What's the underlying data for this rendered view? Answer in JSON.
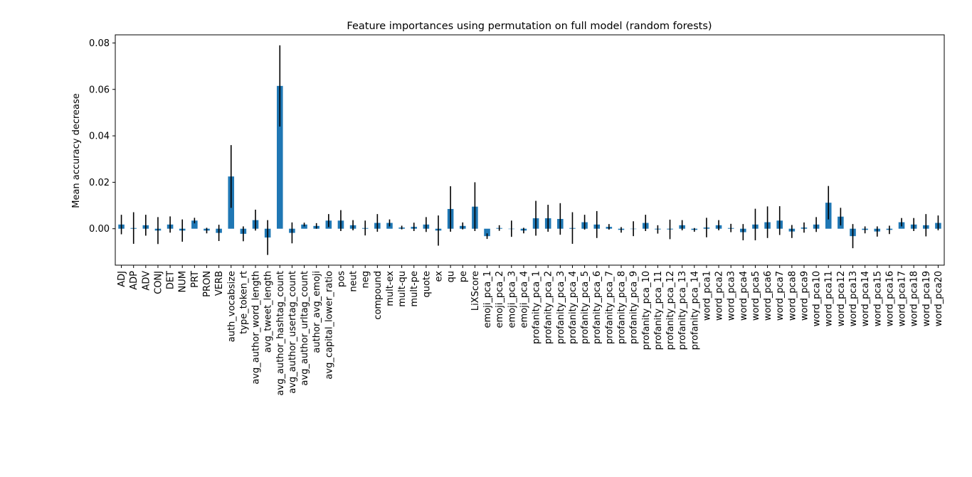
{
  "chart_data": {
    "type": "bar",
    "title": "Feature importances using permutation on full model (random forests)",
    "xlabel": "",
    "ylabel": "Mean accuracy decrease",
    "ylim": [
      -0.0157,
      0.0835
    ],
    "yticks": [
      0.0,
      0.02,
      0.04,
      0.06,
      0.08
    ],
    "ytick_labels": [
      "0.00",
      "0.02",
      "0.04",
      "0.06",
      "0.08"
    ],
    "bar_color": "#1f77b4",
    "error_bar_color": "#000000",
    "grid": false,
    "legend": "none",
    "categories": [
      "ADJ",
      "ADP",
      "ADV",
      "CONJ",
      "DET",
      "NUM",
      "PRT",
      "PRON",
      "VERB",
      "auth_vocabsize",
      "type_token_rt",
      "avg_author_word_length",
      "avg_tweet_length",
      "avg_author_hashtag_count",
      "avg_author_usertag_count",
      "avg_author_urltag_count",
      "author_avg_emoji",
      "avg_capital_lower_ratio",
      "pos",
      "neut",
      "neg",
      "compound",
      "mult-ex",
      "mult-qu",
      "mult-pe",
      "quote",
      "ex",
      "qu",
      "pe",
      "LiXScore",
      "emoji_pca_1",
      "emoji_pca_2",
      "emoji_pca_3",
      "emoji_pca_4",
      "profanity_pca_1",
      "profanity_pca_2",
      "profanity_pca_3",
      "profanity_pca_4",
      "profanity_pca_5",
      "profanity_pca_6",
      "profanity_pca_7",
      "profanity_pca_8",
      "profanity_pca_9",
      "profanity_pca_10",
      "profanity_pca_11",
      "profanity_pca_12",
      "profanity_pca_13",
      "profanity_pca_14",
      "word_pca1",
      "word_pca2",
      "word_pca3",
      "word_pca4",
      "word_pca5",
      "word_pca6",
      "word_pca7",
      "word_pca8",
      "word_pca9",
      "word_pca10",
      "word_pca11",
      "word_pca12",
      "word_pca13",
      "word_pca14",
      "word_pca15",
      "word_pca16",
      "word_pca17",
      "word_pca18",
      "word_pca19",
      "word_pca20"
    ],
    "values": [
      0.0018,
      0.0003,
      0.0015,
      -0.0008,
      0.0018,
      -0.0008,
      0.0035,
      -0.0008,
      -0.0018,
      0.0225,
      -0.0022,
      0.0037,
      -0.0038,
      0.0615,
      -0.0018,
      0.0018,
      0.0012,
      0.0035,
      0.0035,
      0.0015,
      0.0003,
      0.0025,
      0.0025,
      0.0005,
      0.0008,
      0.0018,
      -0.0008,
      0.0085,
      0.0012,
      0.0095,
      -0.0032,
      0.0003,
      0.0,
      -0.0008,
      0.0045,
      0.0045,
      0.0042,
      0.0003,
      0.0028,
      0.0018,
      0.0008,
      -0.0005,
      0.0,
      0.0025,
      -0.0003,
      -0.0003,
      0.0015,
      -0.0005,
      0.0005,
      0.0015,
      0.0003,
      -0.0015,
      0.0018,
      0.0028,
      0.0035,
      -0.0012,
      0.0005,
      0.0018,
      0.0112,
      0.0052,
      -0.0032,
      -0.0005,
      -0.0012,
      -0.0005,
      0.0028,
      0.0018,
      0.0015,
      0.0025
    ],
    "errors": [
      0.0042,
      0.0068,
      0.0045,
      0.0058,
      0.0035,
      0.0048,
      0.0012,
      0.0012,
      0.0035,
      0.0135,
      0.0032,
      0.0045,
      0.0075,
      0.0175,
      0.0045,
      0.0008,
      0.0012,
      0.0028,
      0.0045,
      0.0022,
      0.0032,
      0.0038,
      0.0015,
      0.0008,
      0.0018,
      0.0032,
      0.0065,
      0.0098,
      0.0015,
      0.0105,
      0.0012,
      0.0012,
      0.0035,
      0.0012,
      0.0075,
      0.0058,
      0.0068,
      0.0068,
      0.0032,
      0.0058,
      0.0012,
      0.0012,
      0.0032,
      0.0035,
      0.0018,
      0.0042,
      0.0022,
      0.0008,
      0.0042,
      0.0022,
      0.0018,
      0.0035,
      0.0068,
      0.0068,
      0.0062,
      0.0028,
      0.0022,
      0.0032,
      0.0072,
      0.0038,
      0.0052,
      0.0015,
      0.0022,
      0.0018,
      0.0018,
      0.0028,
      0.0048,
      0.0032
    ]
  }
}
